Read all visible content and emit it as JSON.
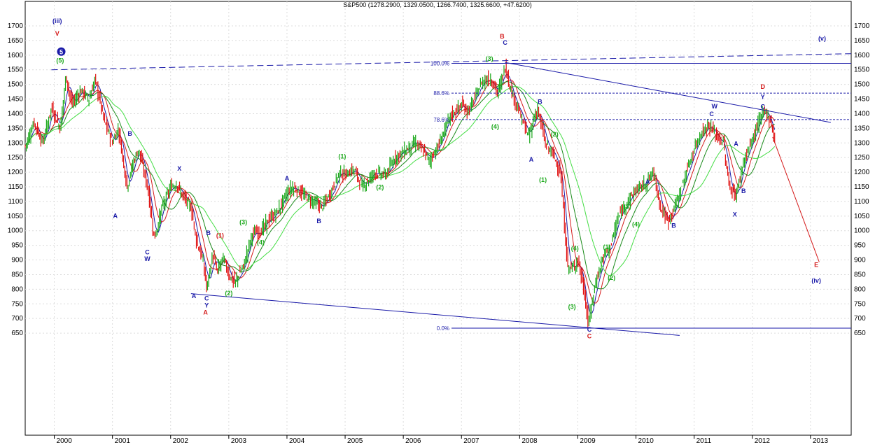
{
  "chart_data": {
    "type": "ohlc",
    "title": "S&P500 (1278.2900, 1329.0500, 1266.7400, 1325.6600, +47.6200)",
    "ylim": [
      610,
      1720
    ],
    "y_ticks": [
      650,
      700,
      750,
      800,
      850,
      900,
      950,
      1000,
      1050,
      1100,
      1150,
      1200,
      1250,
      1300,
      1350,
      1400,
      1450,
      1500,
      1550,
      1600,
      1650,
      1700
    ],
    "x_start": 1999.5,
    "x_end": 2013.7,
    "x_years": [
      "2000",
      "2001",
      "2002",
      "2003",
      "2004",
      "2005",
      "2006",
      "2007",
      "2008",
      "2009",
      "2010",
      "2011",
      "2012",
      "2013"
    ],
    "grid": true,
    "price_path": [
      [
        1999.5,
        1290
      ],
      [
        1999.65,
        1370
      ],
      [
        1999.8,
        1300
      ],
      [
        1999.95,
        1420
      ],
      [
        2000.1,
        1350
      ],
      [
        2000.2,
        1530
      ],
      [
        2000.3,
        1430
      ],
      [
        2000.45,
        1480
      ],
      [
        2000.6,
        1450
      ],
      [
        2000.7,
        1520
      ],
      [
        2000.85,
        1380
      ],
      [
        2001.0,
        1300
      ],
      [
        2001.1,
        1350
      ],
      [
        2001.25,
        1150
      ],
      [
        2001.35,
        1230
      ],
      [
        2001.45,
        1280
      ],
      [
        2001.6,
        1150
      ],
      [
        2001.72,
        970
      ],
      [
        2001.85,
        1080
      ],
      [
        2002.0,
        1150
      ],
      [
        2002.1,
        1160
      ],
      [
        2002.2,
        1120
      ],
      [
        2002.35,
        1080
      ],
      [
        2002.45,
        960
      ],
      [
        2002.55,
        900
      ],
      [
        2002.62,
        800
      ],
      [
        2002.72,
        920
      ],
      [
        2002.8,
        860
      ],
      [
        2002.9,
        910
      ],
      [
        2003.0,
        850
      ],
      [
        2003.1,
        820
      ],
      [
        2003.25,
        880
      ],
      [
        2003.4,
        990
      ],
      [
        2003.55,
        1000
      ],
      [
        2003.7,
        1040
      ],
      [
        2003.85,
        1070
      ],
      [
        2004.0,
        1130
      ],
      [
        2004.1,
        1150
      ],
      [
        2004.3,
        1120
      ],
      [
        2004.45,
        1100
      ],
      [
        2004.6,
        1080
      ],
      [
        2004.75,
        1130
      ],
      [
        2004.9,
        1200
      ],
      [
        2005.0,
        1190
      ],
      [
        2005.15,
        1210
      ],
      [
        2005.3,
        1150
      ],
      [
        2005.5,
        1200
      ],
      [
        2005.7,
        1190
      ],
      [
        2005.85,
        1250
      ],
      [
        2006.0,
        1270
      ],
      [
        2006.2,
        1300
      ],
      [
        2006.35,
        1270
      ],
      [
        2006.45,
        1240
      ],
      [
        2006.6,
        1290
      ],
      [
        2006.8,
        1390
      ],
      [
        2007.0,
        1430
      ],
      [
        2007.1,
        1410
      ],
      [
        2007.2,
        1440
      ],
      [
        2007.35,
        1510
      ],
      [
        2007.5,
        1520
      ],
      [
        2007.62,
        1470
      ],
      [
        2007.75,
        1560
      ],
      [
        2007.85,
        1480
      ],
      [
        2008.0,
        1400
      ],
      [
        2008.15,
        1320
      ],
      [
        2008.3,
        1420
      ],
      [
        2008.45,
        1290
      ],
      [
        2008.55,
        1270
      ],
      [
        2008.7,
        1200
      ],
      [
        2008.82,
        880
      ],
      [
        2008.9,
        870
      ],
      [
        2009.0,
        900
      ],
      [
        2009.1,
        800
      ],
      [
        2009.18,
        680
      ],
      [
        2009.3,
        820
      ],
      [
        2009.45,
        920
      ],
      [
        2009.55,
        940
      ],
      [
        2009.7,
        1050
      ],
      [
        2009.85,
        1100
      ],
      [
        2010.0,
        1140
      ],
      [
        2010.15,
        1160
      ],
      [
        2010.3,
        1200
      ],
      [
        2010.42,
        1080
      ],
      [
        2010.55,
        1030
      ],
      [
        2010.7,
        1100
      ],
      [
        2010.85,
        1190
      ],
      [
        2011.0,
        1280
      ],
      [
        2011.1,
        1330
      ],
      [
        2011.25,
        1360
      ],
      [
        2011.4,
        1320
      ],
      [
        2011.5,
        1300
      ],
      [
        2011.6,
        1150
      ],
      [
        2011.72,
        1120
      ],
      [
        2011.85,
        1240
      ],
      [
        2012.0,
        1310
      ],
      [
        2012.1,
        1370
      ],
      [
        2012.22,
        1410
      ],
      [
        2012.3,
        1380
      ],
      [
        2012.4,
        1300
      ]
    ],
    "wave_labels": [
      {
        "text": "(iii)",
        "x": 2000.05,
        "y": 1710,
        "color": "#1a1aa8"
      },
      {
        "text": "V",
        "x": 2000.05,
        "y": 1667,
        "color": "#d41a1a"
      },
      {
        "text": "5",
        "x": 2000.12,
        "y": 1605,
        "color": "#1a1aa8",
        "circle": true
      },
      {
        "text": "(5)",
        "x": 2000.1,
        "y": 1575,
        "color": "#1aa81a"
      },
      {
        "text": "B",
        "x": 2001.3,
        "y": 1325,
        "color": "#1a1aa8"
      },
      {
        "text": "A",
        "x": 2001.05,
        "y": 1043,
        "color": "#1a1aa8"
      },
      {
        "text": "C",
        "x": 2001.6,
        "y": 919,
        "color": "#1a1aa8"
      },
      {
        "text": "W",
        "x": 2001.6,
        "y": 896,
        "color": "#1a1aa8"
      },
      {
        "text": "X",
        "x": 2002.15,
        "y": 1205,
        "color": "#1a1aa8"
      },
      {
        "text": "B",
        "x": 2002.65,
        "y": 985,
        "color": "#1a1aa8"
      },
      {
        "text": "(1)",
        "x": 2002.85,
        "y": 977,
        "color": "#d41a1a"
      },
      {
        "text": "A",
        "x": 2002.4,
        "y": 770,
        "color": "#1a1aa8"
      },
      {
        "text": "C",
        "x": 2002.62,
        "y": 761,
        "color": "#1a1aa8"
      },
      {
        "text": "Y",
        "x": 2002.62,
        "y": 737,
        "color": "#1a1aa8"
      },
      {
        "text": "A",
        "x": 2002.6,
        "y": 713,
        "color": "#d41a1a"
      },
      {
        "text": "(2)",
        "x": 2003.0,
        "y": 779,
        "color": "#1aa81a"
      },
      {
        "text": "(3)",
        "x": 2003.25,
        "y": 1022,
        "color": "#1aa81a"
      },
      {
        "text": "(4)",
        "x": 2003.55,
        "y": 953,
        "color": "#1aa81a"
      },
      {
        "text": "A",
        "x": 2004.0,
        "y": 1172,
        "color": "#1a1aa8"
      },
      {
        "text": "B",
        "x": 2004.55,
        "y": 1026,
        "color": "#1a1aa8"
      },
      {
        "text": "(1)",
        "x": 2004.95,
        "y": 1247,
        "color": "#1aa81a"
      },
      {
        "text": "(2)",
        "x": 2005.6,
        "y": 1142,
        "color": "#1aa81a"
      },
      {
        "text": "B",
        "x": 2007.7,
        "y": 1657,
        "color": "#d41a1a"
      },
      {
        "text": "C",
        "x": 2007.75,
        "y": 1635,
        "color": "#1a1aa8"
      },
      {
        "text": "(3)",
        "x": 2007.48,
        "y": 1580,
        "color": "#1aa81a"
      },
      {
        "text": "(4)",
        "x": 2007.58,
        "y": 1349,
        "color": "#1aa81a"
      },
      {
        "text": "B",
        "x": 2008.35,
        "y": 1433,
        "color": "#1a1aa8"
      },
      {
        "text": "(2)",
        "x": 2008.6,
        "y": 1322,
        "color": "#1aa81a"
      },
      {
        "text": "A",
        "x": 2008.2,
        "y": 1236,
        "color": "#1a1aa8"
      },
      {
        "text": "(1)",
        "x": 2008.4,
        "y": 1167,
        "color": "#1aa81a"
      },
      {
        "text": "(4)",
        "x": 2008.95,
        "y": 932,
        "color": "#1aa81a"
      },
      {
        "text": "(3)",
        "x": 2008.9,
        "y": 733,
        "color": "#1aa81a"
      },
      {
        "text": "C",
        "x": 2009.2,
        "y": 655,
        "color": "#1a1aa8"
      },
      {
        "text": "C",
        "x": 2009.2,
        "y": 632,
        "color": "#d41a1a"
      },
      {
        "text": "(1)",
        "x": 2009.5,
        "y": 937,
        "color": "#1aa81a"
      },
      {
        "text": "(2)",
        "x": 2009.58,
        "y": 832,
        "color": "#1aa81a"
      },
      {
        "text": "(3)",
        "x": 2009.85,
        "y": 1075,
        "color": "#1aa81a"
      },
      {
        "text": "(4)",
        "x": 2010.0,
        "y": 1015,
        "color": "#1aa81a"
      },
      {
        "text": "A",
        "x": 2010.2,
        "y": 1160,
        "color": "#1a1aa8"
      },
      {
        "text": "B",
        "x": 2010.65,
        "y": 1010,
        "color": "#1a1aa8"
      },
      {
        "text": "W",
        "x": 2011.35,
        "y": 1418,
        "color": "#1a1aa8"
      },
      {
        "text": "C",
        "x": 2011.3,
        "y": 1392,
        "color": "#1a1aa8"
      },
      {
        "text": "A",
        "x": 2011.72,
        "y": 1290,
        "color": "#1a1aa8"
      },
      {
        "text": "B",
        "x": 2011.85,
        "y": 1128,
        "color": "#1a1aa8"
      },
      {
        "text": "X",
        "x": 2011.7,
        "y": 1048,
        "color": "#1a1aa8"
      },
      {
        "text": "D",
        "x": 2012.18,
        "y": 1485,
        "color": "#d41a1a"
      },
      {
        "text": "Y",
        "x": 2012.18,
        "y": 1450,
        "color": "#1a1aa8"
      },
      {
        "text": "C",
        "x": 2012.18,
        "y": 1417,
        "color": "#1a1aa8"
      },
      {
        "text": "E",
        "x": 2013.1,
        "y": 876,
        "color": "#d41a1a"
      },
      {
        "text": "(iv)",
        "x": 2013.1,
        "y": 822,
        "color": "#1a1aa8"
      },
      {
        "text": "(v)",
        "x": 2013.2,
        "y": 1650,
        "color": "#1a1aa8"
      }
    ],
    "fib_levels": [
      {
        "label": "100.0%",
        "value": 1572
      },
      {
        "label": "88.6%",
        "value": 1470
      },
      {
        "label": "78.6%",
        "value": 1380
      },
      {
        "label": "0.0%",
        "value": 667
      }
    ],
    "trend_lines": [
      {
        "name": "upper-dashed",
        "style": "dashed",
        "color": "#1a1aa8",
        "from": [
          1999.95,
          1550
        ],
        "to": [
          2013.7,
          1605
        ]
      },
      {
        "name": "descending-top",
        "style": "solid",
        "color": "#1a1aa8",
        "from": [
          2007.75,
          1575
        ],
        "to": [
          2013.35,
          1370
        ]
      },
      {
        "name": "lower-channel",
        "style": "solid",
        "color": "#1a1aa8",
        "from": [
          2002.35,
          785
        ],
        "to": [
          2010.75,
          642
        ]
      },
      {
        "name": "projection",
        "style": "solid",
        "color": "#d41a1a",
        "from": [
          2012.35,
          1320
        ],
        "to": [
          2013.15,
          893
        ]
      }
    ]
  }
}
